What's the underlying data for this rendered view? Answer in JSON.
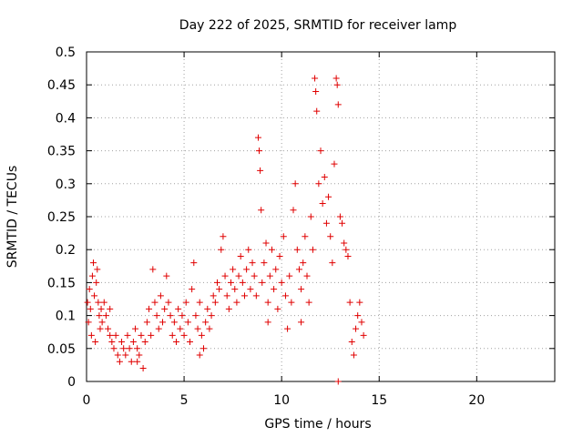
{
  "chart_data": {
    "type": "scatter",
    "title": "Day 222 of 2025, SRMTID for receiver lamp",
    "xlabel": "GPS time / hours",
    "ylabel": "SRMTID / TECUs",
    "xlim": [
      0,
      24
    ],
    "ylim": [
      0,
      0.5
    ],
    "xticks": [
      0,
      5,
      10,
      15,
      20
    ],
    "xtick_labels": [
      "0",
      "5",
      "10",
      "15",
      "20"
    ],
    "yticks": [
      0,
      0.05,
      0.1,
      0.15,
      0.2,
      0.25,
      0.3,
      0.35,
      0.4,
      0.45,
      0.5
    ],
    "ytick_labels": [
      "0",
      "0.05",
      "0.1",
      "0.15",
      "0.2",
      "0.25",
      "0.3",
      "0.35",
      "0.4",
      "0.45",
      "0.5"
    ],
    "grid": true,
    "marker": "+",
    "marker_color": "#e00000",
    "series": [
      {
        "name": "SRMTID",
        "points": [
          [
            0.05,
            0.12
          ],
          [
            0.1,
            0.09
          ],
          [
            0.15,
            0.14
          ],
          [
            0.2,
            0.11
          ],
          [
            0.25,
            0.07
          ],
          [
            0.3,
            0.16
          ],
          [
            0.35,
            0.18
          ],
          [
            0.4,
            0.13
          ],
          [
            0.45,
            0.06
          ],
          [
            0.5,
            0.15
          ],
          [
            0.55,
            0.17
          ],
          [
            0.6,
            0.12
          ],
          [
            0.65,
            0.1
          ],
          [
            0.7,
            0.08
          ],
          [
            0.75,
            0.11
          ],
          [
            0.8,
            0.09
          ],
          [
            0.9,
            0.12
          ],
          [
            1.0,
            0.1
          ],
          [
            1.1,
            0.08
          ],
          [
            1.2,
            0.11
          ],
          [
            1.3,
            0.06
          ],
          [
            1.4,
            0.05
          ],
          [
            1.5,
            0.07
          ],
          [
            1.6,
            0.04
          ],
          [
            1.7,
            0.03
          ],
          [
            1.8,
            0.06
          ],
          [
            1.9,
            0.05
          ],
          [
            2.0,
            0.04
          ],
          [
            2.1,
            0.07
          ],
          [
            2.2,
            0.05
          ],
          [
            2.3,
            0.03
          ],
          [
            2.4,
            0.06
          ],
          [
            2.5,
            0.08
          ],
          [
            2.6,
            0.05
          ],
          [
            2.7,
            0.04
          ],
          [
            2.8,
            0.07
          ],
          [
            2.9,
            0.02
          ],
          [
            3.0,
            0.06
          ],
          [
            3.1,
            0.09
          ],
          [
            3.2,
            0.11
          ],
          [
            3.3,
            0.07
          ],
          [
            3.4,
            0.17
          ],
          [
            3.5,
            0.12
          ],
          [
            3.6,
            0.1
          ],
          [
            3.7,
            0.08
          ],
          [
            3.8,
            0.13
          ],
          [
            3.9,
            0.09
          ],
          [
            4.0,
            0.11
          ],
          [
            4.1,
            0.16
          ],
          [
            4.2,
            0.12
          ],
          [
            4.3,
            0.1
          ],
          [
            4.4,
            0.07
          ],
          [
            4.5,
            0.09
          ],
          [
            4.6,
            0.06
          ],
          [
            4.7,
            0.11
          ],
          [
            4.8,
            0.08
          ],
          [
            4.9,
            0.1
          ],
          [
            5.0,
            0.07
          ],
          [
            5.1,
            0.12
          ],
          [
            5.2,
            0.09
          ],
          [
            5.3,
            0.06
          ],
          [
            5.4,
            0.14
          ],
          [
            5.5,
            0.18
          ],
          [
            5.6,
            0.1
          ],
          [
            5.7,
            0.08
          ],
          [
            5.8,
            0.12
          ],
          [
            5.9,
            0.07
          ],
          [
            6.0,
            0.05
          ],
          [
            6.1,
            0.09
          ],
          [
            6.2,
            0.11
          ],
          [
            6.3,
            0.08
          ],
          [
            6.4,
            0.1
          ],
          [
            6.5,
            0.13
          ],
          [
            6.6,
            0.12
          ],
          [
            6.7,
            0.15
          ],
          [
            6.8,
            0.14
          ],
          [
            6.9,
            0.2
          ],
          [
            7.0,
            0.22
          ],
          [
            7.1,
            0.16
          ],
          [
            7.2,
            0.13
          ],
          [
            7.3,
            0.11
          ],
          [
            7.4,
            0.15
          ],
          [
            7.5,
            0.17
          ],
          [
            7.6,
            0.14
          ],
          [
            7.7,
            0.12
          ],
          [
            7.8,
            0.16
          ],
          [
            7.9,
            0.19
          ],
          [
            8.0,
            0.15
          ],
          [
            8.1,
            0.13
          ],
          [
            8.2,
            0.17
          ],
          [
            8.3,
            0.2
          ],
          [
            8.4,
            0.14
          ],
          [
            8.5,
            0.18
          ],
          [
            8.6,
            0.16
          ],
          [
            8.7,
            0.13
          ],
          [
            8.8,
            0.37
          ],
          [
            8.85,
            0.35
          ],
          [
            8.9,
            0.32
          ],
          [
            8.95,
            0.26
          ],
          [
            9.0,
            0.15
          ],
          [
            9.1,
            0.18
          ],
          [
            9.2,
            0.21
          ],
          [
            9.3,
            0.12
          ],
          [
            9.4,
            0.16
          ],
          [
            9.5,
            0.2
          ],
          [
            9.6,
            0.14
          ],
          [
            9.7,
            0.17
          ],
          [
            9.8,
            0.11
          ],
          [
            9.9,
            0.19
          ],
          [
            10.0,
            0.15
          ],
          [
            10.1,
            0.22
          ],
          [
            10.2,
            0.13
          ],
          [
            10.3,
            0.08
          ],
          [
            10.4,
            0.16
          ],
          [
            10.5,
            0.12
          ],
          [
            10.6,
            0.26
          ],
          [
            10.7,
            0.3
          ],
          [
            10.8,
            0.2
          ],
          [
            10.9,
            0.17
          ],
          [
            11.0,
            0.14
          ],
          [
            11.1,
            0.18
          ],
          [
            11.2,
            0.22
          ],
          [
            11.3,
            0.16
          ],
          [
            11.4,
            0.12
          ],
          [
            11.5,
            0.25
          ],
          [
            11.6,
            0.2
          ],
          [
            11.7,
            0.46
          ],
          [
            11.75,
            0.44
          ],
          [
            11.8,
            0.41
          ],
          [
            11.9,
            0.3
          ],
          [
            12.0,
            0.35
          ],
          [
            12.1,
            0.27
          ],
          [
            12.2,
            0.31
          ],
          [
            12.3,
            0.24
          ],
          [
            12.4,
            0.28
          ],
          [
            12.5,
            0.22
          ],
          [
            12.6,
            0.18
          ],
          [
            12.7,
            0.33
          ],
          [
            12.8,
            0.46
          ],
          [
            12.85,
            0.45
          ],
          [
            12.9,
            0.42
          ],
          [
            13.0,
            0.25
          ],
          [
            13.1,
            0.24
          ],
          [
            13.2,
            0.21
          ],
          [
            13.3,
            0.2
          ],
          [
            13.4,
            0.19
          ],
          [
            13.5,
            0.12
          ],
          [
            13.6,
            0.06
          ],
          [
            13.7,
            0.04
          ],
          [
            13.8,
            0.08
          ],
          [
            13.9,
            0.1
          ],
          [
            14.0,
            0.12
          ],
          [
            14.1,
            0.09
          ],
          [
            14.2,
            0.07
          ],
          [
            12.9,
            0.0
          ],
          [
            1.2,
            0.07
          ],
          [
            2.6,
            0.03
          ],
          [
            5.8,
            0.04
          ],
          [
            9.3,
            0.09
          ],
          [
            11.0,
            0.09
          ]
        ]
      }
    ]
  }
}
